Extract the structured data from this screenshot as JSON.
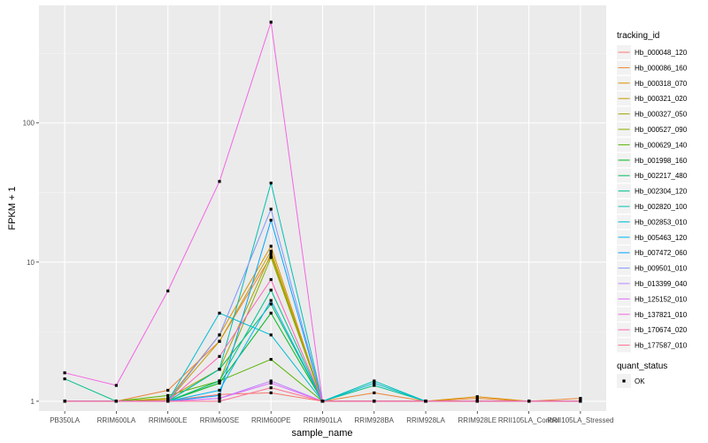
{
  "chart_data": {
    "type": "line",
    "xlabel": "sample_name",
    "ylabel": "FPKM + 1",
    "y_scale": "log10",
    "ylim": [
      0.85,
      700
    ],
    "y_ticks": [
      1,
      10,
      100
    ],
    "y_tick_labels": [
      "1",
      "10",
      "100"
    ],
    "grid": true,
    "legend_position": "right",
    "categories": [
      "PB350LA",
      "RRIM600LA",
      "RRIM600LE",
      "RRIM600SE",
      "RRIM600PE",
      "RRIM901LA",
      "RRIM928BA",
      "RRIM928LA",
      "RRIM928LE",
      "RRII105LA_Control",
      "RRII105LA_Stressed"
    ],
    "legend_title": "tracking_id",
    "series": [
      {
        "name": "Hb_000048_120",
        "color": "#F8766D",
        "values": [
          1.0,
          1.0,
          1.01,
          1.12,
          1.15,
          1.0,
          1.0,
          1.0,
          1.0,
          1.0,
          1.0
        ]
      },
      {
        "name": "Hb_000086_160",
        "color": "#EB8335",
        "values": [
          1.0,
          1.0,
          1.2,
          2.7,
          11.0,
          1.0,
          1.15,
          1.0,
          1.05,
          1.0,
          1.05
        ]
      },
      {
        "name": "Hb_000318_070",
        "color": "#DA8F00",
        "values": [
          1.0,
          1.0,
          1.03,
          3.0,
          13.0,
          1.0,
          1.0,
          1.0,
          1.08,
          1.0,
          1.0
        ]
      },
      {
        "name": "Hb_000321_020",
        "color": "#C49A00",
        "values": [
          1.0,
          1.0,
          1.0,
          2.7,
          12.0,
          1.0,
          1.0,
          1.0,
          1.0,
          1.0,
          1.0
        ]
      },
      {
        "name": "Hb_000327_050",
        "color": "#A9A400",
        "values": [
          1.0,
          1.0,
          1.05,
          1.7,
          11.5,
          1.0,
          1.0,
          1.0,
          1.0,
          1.0,
          1.0
        ]
      },
      {
        "name": "Hb_000527_090",
        "color": "#86AC00",
        "values": [
          1.0,
          1.0,
          1.0,
          1.4,
          10.8,
          1.0,
          1.0,
          1.0,
          1.0,
          1.0,
          1.0
        ]
      },
      {
        "name": "Hb_000629_140",
        "color": "#53B400",
        "values": [
          1.0,
          1.0,
          1.1,
          1.4,
          2.0,
          1.0,
          1.0,
          1.0,
          1.0,
          1.0,
          1.0
        ]
      },
      {
        "name": "Hb_001998_160",
        "color": "#00B81F",
        "values": [
          1.0,
          1.0,
          1.0,
          1.35,
          4.3,
          1.0,
          1.0,
          1.0,
          1.0,
          1.0,
          1.0
        ]
      },
      {
        "name": "Hb_002217_480",
        "color": "#00BC59",
        "values": [
          1.0,
          1.0,
          1.0,
          1.7,
          5.0,
          1.0,
          1.0,
          1.0,
          1.0,
          1.0,
          1.0
        ]
      },
      {
        "name": "Hb_002304_120",
        "color": "#00C08B",
        "values": [
          1.45,
          1.0,
          1.0,
          1.4,
          6.3,
          1.0,
          1.3,
          1.0,
          1.0,
          1.0,
          1.0
        ]
      },
      {
        "name": "Hb_002820_100",
        "color": "#00C0B2",
        "values": [
          1.0,
          1.0,
          1.0,
          1.7,
          37.0,
          1.0,
          1.4,
          1.0,
          1.0,
          1.0,
          1.0
        ]
      },
      {
        "name": "Hb_002853_010",
        "color": "#00BCD4",
        "values": [
          1.0,
          1.0,
          1.0,
          4.3,
          3.0,
          1.0,
          1.35,
          1.0,
          1.0,
          1.0,
          1.0
        ]
      },
      {
        "name": "Hb_005463_120",
        "color": "#00B4EF",
        "values": [
          1.0,
          1.0,
          1.0,
          1.2,
          5.3,
          1.0,
          1.0,
          1.0,
          1.0,
          1.0,
          1.0
        ]
      },
      {
        "name": "Hb_007472_060",
        "color": "#00A5FF",
        "values": [
          1.0,
          1.0,
          1.0,
          1.1,
          20.0,
          1.0,
          1.0,
          1.0,
          1.0,
          1.0,
          1.0
        ]
      },
      {
        "name": "Hb_009501_010",
        "color": "#7F96FF",
        "values": [
          1.0,
          1.0,
          1.0,
          3.0,
          24.0,
          1.0,
          1.0,
          1.0,
          1.0,
          1.0,
          1.0
        ]
      },
      {
        "name": "Hb_013399_040",
        "color": "#BC81FF",
        "values": [
          1.0,
          1.0,
          1.0,
          1.05,
          1.4,
          1.0,
          1.0,
          1.0,
          1.0,
          1.0,
          1.0
        ]
      },
      {
        "name": "Hb_125152_010",
        "color": "#E06EFA",
        "values": [
          1.0,
          1.0,
          1.0,
          1.05,
          1.35,
          1.0,
          1.0,
          1.0,
          1.0,
          1.0,
          1.0
        ]
      },
      {
        "name": "Hb_137821_010",
        "color": "#F564E3",
        "values": [
          1.6,
          1.3,
          6.2,
          38.0,
          530.0,
          1.0,
          1.0,
          1.0,
          1.0,
          1.0,
          1.0
        ]
      },
      {
        "name": "Hb_170674_020",
        "color": "#FF63B8",
        "values": [
          1.0,
          1.0,
          1.0,
          2.1,
          7.5,
          1.0,
          1.0,
          1.0,
          1.0,
          1.0,
          1.0
        ]
      },
      {
        "name": "Hb_177587_010",
        "color": "#FF6C91",
        "values": [
          1.0,
          1.0,
          1.0,
          1.0,
          1.25,
          1.0,
          1.0,
          1.0,
          1.0,
          1.0,
          1.0
        ]
      }
    ],
    "shape_legend": {
      "title": "quant_status",
      "items": [
        "OK"
      ]
    }
  }
}
